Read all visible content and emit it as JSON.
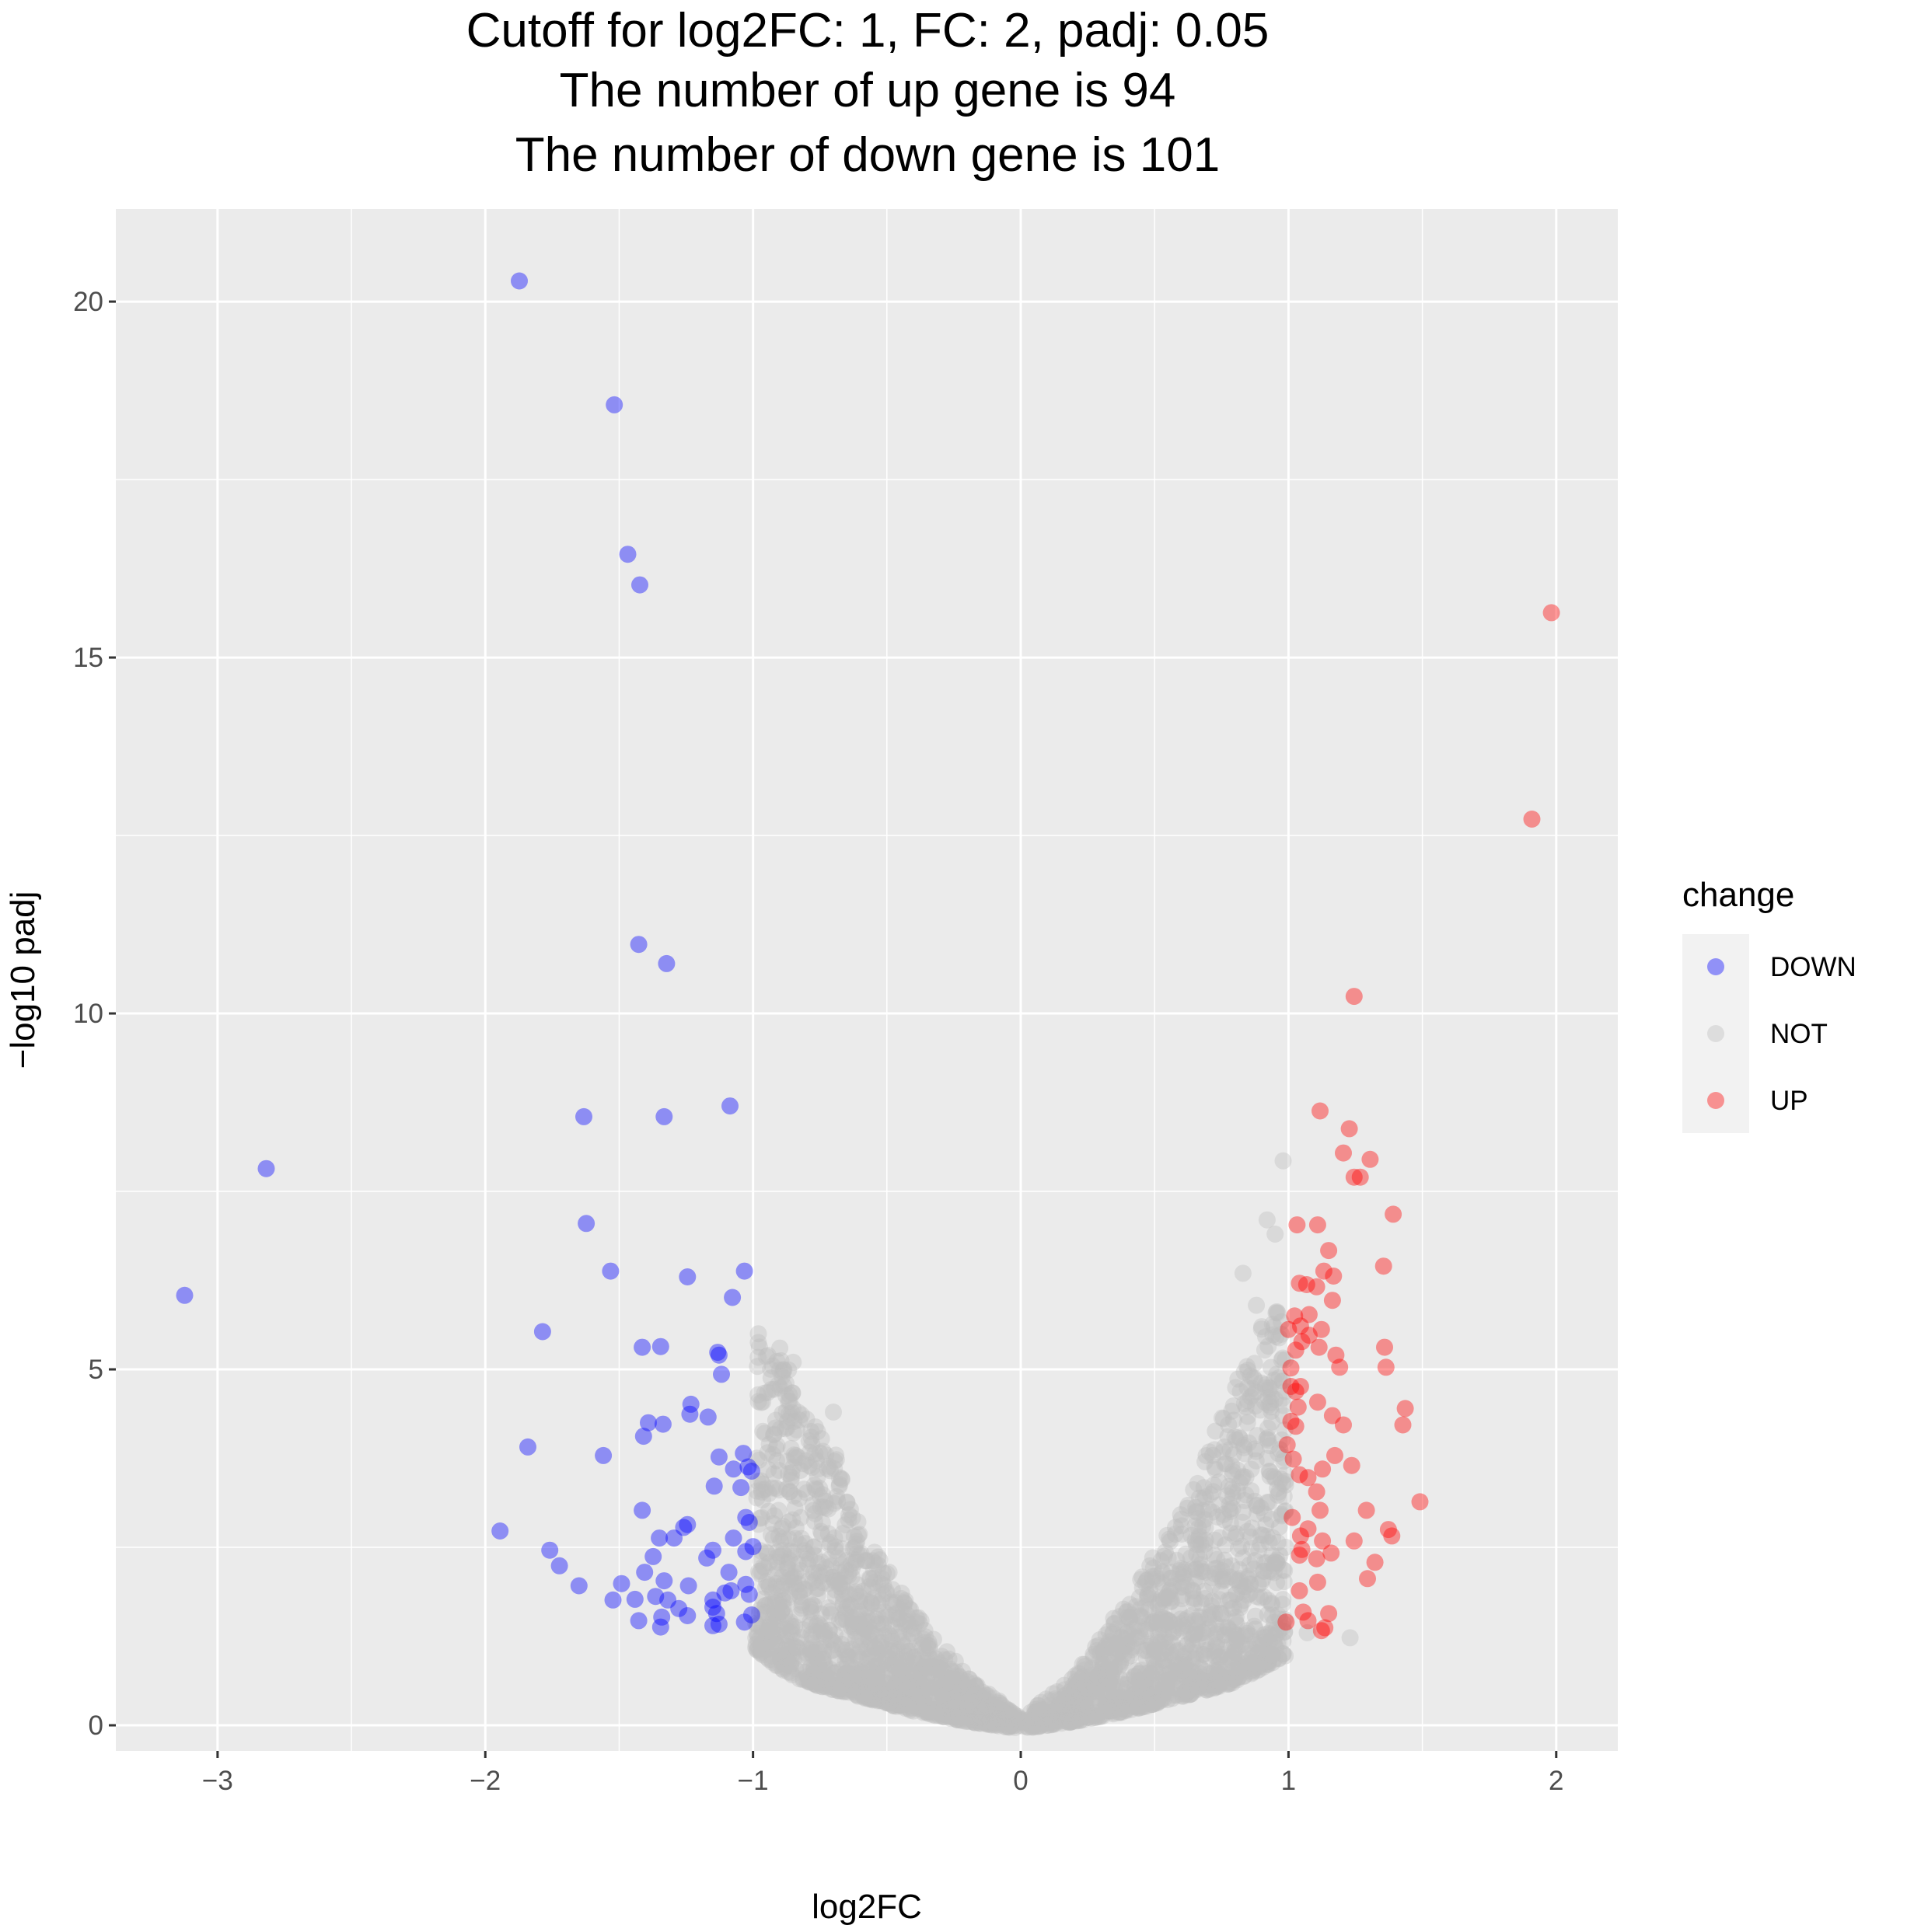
{
  "chart_data": {
    "type": "scatter",
    "title_lines": [
      "Cutoff for log2FC: 1, FC: 2, padj: 0.05",
      "The number of up gene is 94",
      "The number of down gene is 101"
    ],
    "xlabel": "log2FC",
    "ylabel": "−log10 padj",
    "xlim": [
      -3.38,
      2.23
    ],
    "ylim": [
      -0.36,
      21.3
    ],
    "x_ticks": [
      -3,
      -2,
      -1,
      0,
      1,
      2
    ],
    "x_tick_labels": [
      "−3",
      "−2",
      "−1",
      "0",
      "1",
      "2"
    ],
    "y_ticks": [
      0,
      5,
      10,
      15,
      20
    ],
    "y_tick_labels": [
      "0",
      "5",
      "10",
      "15",
      "20"
    ],
    "grid": true,
    "legend": {
      "title": "change",
      "position": "right",
      "entries": [
        "DOWN",
        "NOT",
        "UP"
      ]
    },
    "colors": {
      "DOWN": "#0000ff",
      "NOT": "#bebebe",
      "UP": "#ff0000",
      "panel": "#ebebeb",
      "grid": "#ffffff"
    },
    "point_alpha": 0.4,
    "series": [
      {
        "name": "DOWN",
        "points": [
          [
            -1.873,
            20.29
          ],
          [
            -1.518,
            18.55
          ],
          [
            -1.468,
            16.45
          ],
          [
            -1.423,
            16.02
          ],
          [
            -1.427,
            10.97
          ],
          [
            -1.323,
            10.7
          ],
          [
            -1.086,
            8.7
          ],
          [
            -1.632,
            8.55
          ],
          [
            -1.332,
            8.55
          ],
          [
            -2.818,
            7.82
          ],
          [
            -1.623,
            7.05
          ],
          [
            -1.532,
            6.38
          ],
          [
            -1.032,
            6.38
          ],
          [
            -1.245,
            6.3
          ],
          [
            -1.077,
            6.01
          ],
          [
            -3.123,
            6.04
          ],
          [
            -1.786,
            5.53
          ],
          [
            -1.414,
            5.31
          ],
          [
            -1.345,
            5.32
          ],
          [
            -1.132,
            5.24
          ],
          [
            -1.127,
            5.2
          ],
          [
            -1.118,
            4.93
          ],
          [
            -1.232,
            4.51
          ],
          [
            -1.236,
            4.37
          ],
          [
            -1.168,
            4.33
          ],
          [
            -1.336,
            4.23
          ],
          [
            -1.391,
            4.25
          ],
          [
            -1.409,
            4.06
          ],
          [
            -1.841,
            3.91
          ],
          [
            -1.559,
            3.79
          ],
          [
            -1.127,
            3.77
          ],
          [
            -1.036,
            3.82
          ],
          [
            -1.073,
            3.6
          ],
          [
            -1.018,
            3.63
          ],
          [
            -1.005,
            3.57
          ],
          [
            -1.145,
            3.36
          ],
          [
            -1.045,
            3.34
          ],
          [
            -1.414,
            3.02
          ],
          [
            -1.027,
            2.92
          ],
          [
            -1.014,
            2.85
          ],
          [
            -1.245,
            2.82
          ],
          [
            -1.259,
            2.78
          ],
          [
            -1.945,
            2.73
          ],
          [
            -1.295,
            2.63
          ],
          [
            -1.35,
            2.63
          ],
          [
            -1.073,
            2.63
          ],
          [
            -1.0,
            2.51
          ],
          [
            -1.15,
            2.46
          ],
          [
            -1.027,
            2.44
          ],
          [
            -1.759,
            2.46
          ],
          [
            -1.173,
            2.35
          ],
          [
            -1.373,
            2.37
          ],
          [
            -1.723,
            2.24
          ],
          [
            -1.405,
            2.15
          ],
          [
            -1.332,
            2.03
          ],
          [
            -1.09,
            2.15
          ],
          [
            -1.027,
            1.98
          ],
          [
            -1.65,
            1.96
          ],
          [
            -1.491,
            1.99
          ],
          [
            -1.241,
            1.96
          ],
          [
            -1.082,
            1.89
          ],
          [
            -1.105,
            1.86
          ],
          [
            -1.014,
            1.84
          ],
          [
            -1.364,
            1.81
          ],
          [
            -1.318,
            1.76
          ],
          [
            -1.441,
            1.77
          ],
          [
            -1.523,
            1.76
          ],
          [
            -1.15,
            1.76
          ],
          [
            -1.15,
            1.66
          ],
          [
            -1.277,
            1.64
          ],
          [
            -1.136,
            1.57
          ],
          [
            -1.245,
            1.54
          ],
          [
            -1.341,
            1.52
          ],
          [
            -1.005,
            1.55
          ],
          [
            -1.427,
            1.47
          ],
          [
            -1.032,
            1.45
          ],
          [
            -1.127,
            1.42
          ],
          [
            -1.345,
            1.38
          ],
          [
            -1.15,
            1.4
          ]
        ]
      },
      {
        "name": "UP",
        "points": [
          [
            1.982,
            15.63
          ],
          [
            1.909,
            12.73
          ],
          [
            1.245,
            10.24
          ],
          [
            1.118,
            8.63
          ],
          [
            1.227,
            8.38
          ],
          [
            1.205,
            8.04
          ],
          [
            1.305,
            7.95
          ],
          [
            1.245,
            7.7
          ],
          [
            1.268,
            7.7
          ],
          [
            1.391,
            7.18
          ],
          [
            1.032,
            7.03
          ],
          [
            1.109,
            7.03
          ],
          [
            1.15,
            6.67
          ],
          [
            1.355,
            6.45
          ],
          [
            1.132,
            6.38
          ],
          [
            1.168,
            6.31
          ],
          [
            1.041,
            6.21
          ],
          [
            1.068,
            6.19
          ],
          [
            1.105,
            6.16
          ],
          [
            1.164,
            5.97
          ],
          [
            1.023,
            5.75
          ],
          [
            1.077,
            5.77
          ],
          [
            1.045,
            5.61
          ],
          [
            1.123,
            5.56
          ],
          [
            1.0,
            5.56
          ],
          [
            1.077,
            5.48
          ],
          [
            1.05,
            5.39
          ],
          [
            1.359,
            5.31
          ],
          [
            1.114,
            5.31
          ],
          [
            1.177,
            5.2
          ],
          [
            1.027,
            5.27
          ],
          [
            1.191,
            5.03
          ],
          [
            1.364,
            5.03
          ],
          [
            1.009,
            5.02
          ],
          [
            1.009,
            4.76
          ],
          [
            1.045,
            4.76
          ],
          [
            1.027,
            4.69
          ],
          [
            1.436,
            4.45
          ],
          [
            1.036,
            4.47
          ],
          [
            1.109,
            4.54
          ],
          [
            1.164,
            4.35
          ],
          [
            1.009,
            4.27
          ],
          [
            1.205,
            4.22
          ],
          [
            1.427,
            4.22
          ],
          [
            1.027,
            4.2
          ],
          [
            0.995,
            3.94
          ],
          [
            1.173,
            3.79
          ],
          [
            1.018,
            3.74
          ],
          [
            1.236,
            3.65
          ],
          [
            1.127,
            3.6
          ],
          [
            1.041,
            3.52
          ],
          [
            1.073,
            3.48
          ],
          [
            1.105,
            3.28
          ],
          [
            1.491,
            3.14
          ],
          [
            1.291,
            3.02
          ],
          [
            1.118,
            3.02
          ],
          [
            1.014,
            2.92
          ],
          [
            1.073,
            2.76
          ],
          [
            1.373,
            2.75
          ],
          [
            1.386,
            2.66
          ],
          [
            1.245,
            2.59
          ],
          [
            1.045,
            2.66
          ],
          [
            1.127,
            2.59
          ],
          [
            1.05,
            2.47
          ],
          [
            1.041,
            2.39
          ],
          [
            1.159,
            2.42
          ],
          [
            1.105,
            2.34
          ],
          [
            1.323,
            2.29
          ],
          [
            1.295,
            2.06
          ],
          [
            1.109,
            2.01
          ],
          [
            1.041,
            1.89
          ],
          [
            1.055,
            1.59
          ],
          [
            1.15,
            1.57
          ],
          [
            0.991,
            1.45
          ],
          [
            1.073,
            1.47
          ],
          [
            1.136,
            1.37
          ],
          [
            1.123,
            1.33
          ]
        ]
      },
      {
        "name": "NOT",
        "outliers": [
          [
            0.98,
            7.93
          ],
          [
            0.92,
            7.1
          ],
          [
            0.95,
            6.9
          ],
          [
            0.83,
            6.35
          ],
          [
            1.23,
            1.23
          ],
          [
            1.07,
            1.3
          ],
          [
            -0.9,
            5.3
          ],
          [
            -0.85,
            5.1
          ],
          [
            -0.98,
            5.5
          ],
          [
            -0.7,
            4.4
          ],
          [
            0.88,
            5.9
          ],
          [
            0.9,
            5.6
          ],
          [
            -0.8,
            4.3
          ]
        ],
        "envelope": {
          "abs_x": [
            0,
            0.2,
            0.4,
            0.6,
            0.7,
            0.8,
            0.9,
            1.0
          ],
          "left_lower": [
            -0.05,
            0.05,
            0.2,
            0.4,
            0.5,
            0.6,
            0.8,
            1.1
          ],
          "left_upper": [
            0.1,
            0.7,
            1.6,
            2.8,
            3.9,
            4.5,
            5.3,
            5.5
          ],
          "right_lower": [
            -0.05,
            0.05,
            0.2,
            0.4,
            0.5,
            0.6,
            0.8,
            1.0
          ],
          "right_upper": [
            0.1,
            0.7,
            1.8,
            3.0,
            3.9,
            4.8,
            5.6,
            6.0
          ]
        }
      }
    ]
  }
}
